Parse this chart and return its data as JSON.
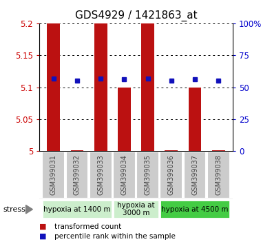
{
  "title": "GDS4929 / 1421863_at",
  "samples": [
    "GSM399031",
    "GSM399032",
    "GSM399033",
    "GSM399034",
    "GSM399035",
    "GSM399036",
    "GSM399037",
    "GSM399038"
  ],
  "bar_values": [
    5.2,
    5.002,
    5.2,
    5.1,
    5.2,
    5.002,
    5.1,
    5.002
  ],
  "percentile_values": [
    57,
    55,
    57,
    56,
    57,
    55,
    56,
    55
  ],
  "ymin": 5.0,
  "ymax": 5.2,
  "yticks": [
    5.0,
    5.05,
    5.1,
    5.15,
    5.2
  ],
  "ytick_labels": [
    "5",
    "5.05",
    "5.1",
    "5.15",
    "5.2"
  ],
  "right_yticks": [
    0,
    25,
    50,
    75,
    100
  ],
  "right_ytick_labels": [
    "0",
    "25",
    "50",
    "75",
    "100%"
  ],
  "bar_color": "#bb1111",
  "dot_color": "#1111bb",
  "bar_width": 0.55,
  "groups": [
    {
      "label": "hypoxia at 1400 m",
      "samples": [
        "GSM399031",
        "GSM399032",
        "GSM399033"
      ],
      "color": "#cceecc"
    },
    {
      "label": "hypoxia at\n3000 m",
      "samples": [
        "GSM399034",
        "GSM399035"
      ],
      "color": "#cceecc"
    },
    {
      "label": "hypoxia at 4500 m",
      "samples": [
        "GSM399036",
        "GSM399037",
        "GSM399038"
      ],
      "color": "#44cc44"
    }
  ],
  "stress_label": "stress",
  "legend_bar_label": "transformed count",
  "legend_dot_label": "percentile rank within the sample",
  "title_fontsize": 11,
  "axis_label_color_left": "#cc0000",
  "axis_label_color_right": "#0000cc",
  "sample_area_color": "#cccccc",
  "sample_text_color": "#444444",
  "bg_color": "#ffffff"
}
